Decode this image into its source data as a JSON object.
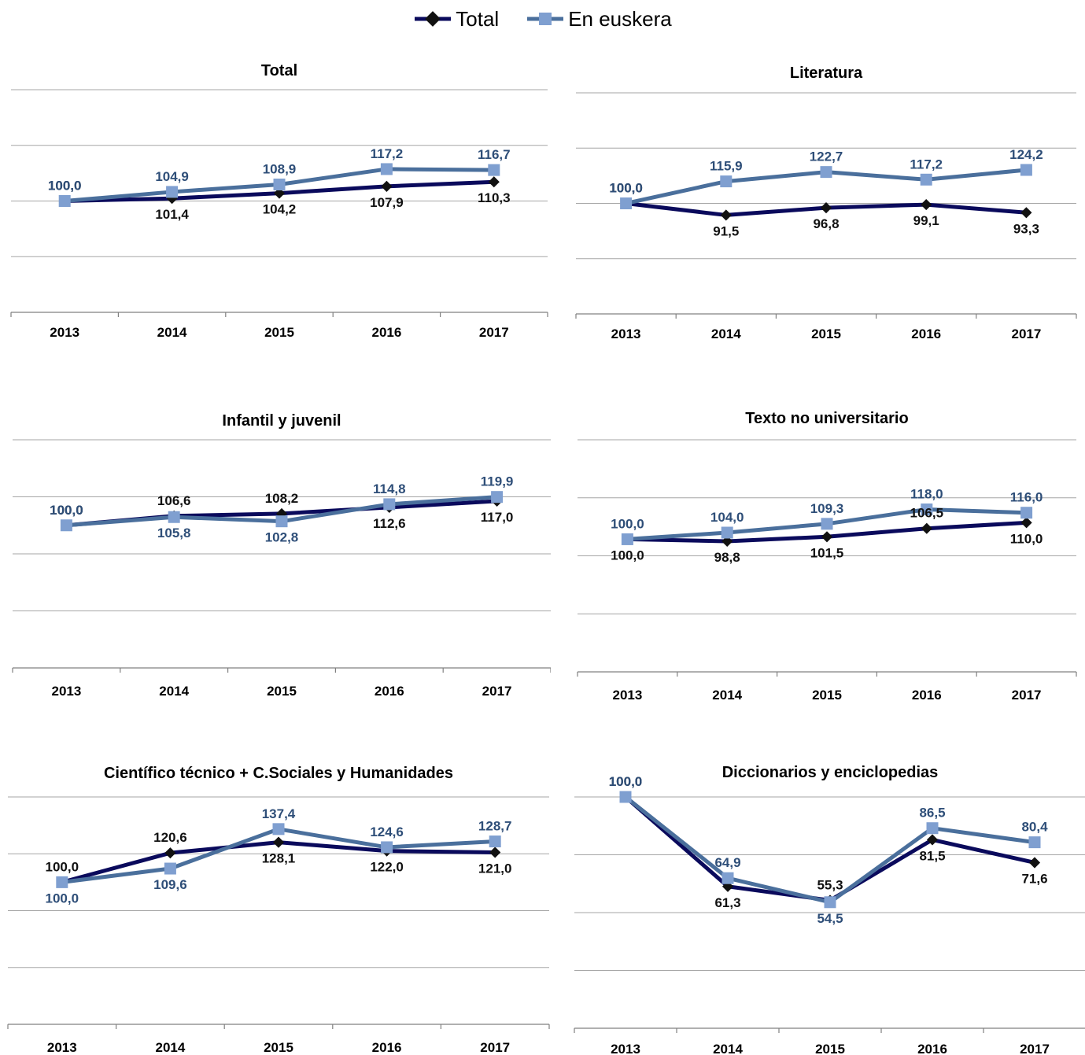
{
  "legend": {
    "total_label": "Total",
    "euskera_label": "En euskera"
  },
  "colors": {
    "total_line": "#0a0a5c",
    "total_marker": "#111111",
    "euskera_line": "#4a6f9c",
    "euskera_marker": "#7f9fd0",
    "euskera_label": "#2e4e78",
    "total_label": "#111111",
    "grid": "#a6a6a6"
  },
  "chart_data": [
    {
      "type": "line",
      "title": "Total",
      "categories": [
        "2013",
        "2014",
        "2015",
        "2016",
        "2017"
      ],
      "series": [
        {
          "name": "Total",
          "values": [
            100.0,
            101.4,
            104.2,
            107.9,
            110.3
          ],
          "labels": [
            "100,0",
            "101,4",
            "104,2",
            "107,9",
            "110,3"
          ]
        },
        {
          "name": "En euskera",
          "values": [
            100.0,
            104.9,
            108.9,
            117.2,
            116.7
          ],
          "labels": [
            "100,0",
            "104,9",
            "108,9",
            "117,2",
            "116,7"
          ]
        }
      ],
      "ylim": [
        40,
        160
      ],
      "grid": true
    },
    {
      "type": "line",
      "title": "Literatura",
      "categories": [
        "2013",
        "2014",
        "2015",
        "2016",
        "2017"
      ],
      "series": [
        {
          "name": "Total",
          "values": [
            100.0,
            91.5,
            96.8,
            99.1,
            93.3
          ],
          "labels": [
            "100,0",
            "91,5",
            "96,8",
            "99,1",
            "93,3"
          ]
        },
        {
          "name": "En euskera",
          "values": [
            100.0,
            115.9,
            122.7,
            117.2,
            124.2
          ],
          "labels": [
            "100,0",
            "115,9",
            "122,7",
            "117,2",
            "124,2"
          ]
        }
      ],
      "ylim": [
        20,
        180
      ],
      "grid": true
    },
    {
      "type": "line",
      "title": "Infantil y juvenil",
      "categories": [
        "2013",
        "2014",
        "2015",
        "2016",
        "2017"
      ],
      "series": [
        {
          "name": "Total",
          "values": [
            100.0,
            106.6,
            108.2,
            112.6,
            117.0
          ],
          "labels": [
            "100,0",
            "106,6",
            "108,2",
            "112,6",
            "117,0"
          ]
        },
        {
          "name": "En euskera",
          "values": [
            100.0,
            105.8,
            102.8,
            114.8,
            119.9
          ],
          "labels": [
            "100,0",
            "105,8",
            "102,8",
            "114,8",
            "119,9"
          ]
        }
      ],
      "ylim": [
        0,
        160
      ],
      "grid": true
    },
    {
      "type": "line",
      "title": "Texto no universitario",
      "categories": [
        "2013",
        "2014",
        "2015",
        "2016",
        "2017"
      ],
      "series": [
        {
          "name": "Total",
          "values": [
            100.0,
            98.8,
            101.5,
            106.5,
            110.0
          ],
          "labels": [
            "100,0",
            "98,8",
            "101,5",
            "106,5",
            "110,0"
          ]
        },
        {
          "name": "En euskera",
          "values": [
            100.0,
            104.0,
            109.3,
            118.0,
            116.0
          ],
          "labels": [
            "100,0",
            "104,0",
            "109,3",
            "118,0",
            "116,0"
          ]
        }
      ],
      "ylim": [
        20,
        160
      ],
      "grid": true
    },
    {
      "type": "line",
      "title": "Científico técnico + C.Sociales y Humanidades",
      "categories": [
        "2013",
        "2014",
        "2015",
        "2016",
        "2017"
      ],
      "series": [
        {
          "name": "Total",
          "values": [
            100.0,
            120.6,
            128.1,
            122.0,
            121.0
          ],
          "labels": [
            "100,0",
            "120,6",
            "128,1",
            "122,0",
            "121,0"
          ]
        },
        {
          "name": "En euskera",
          "values": [
            100.0,
            109.6,
            137.4,
            124.6,
            128.7
          ],
          "labels": [
            "100,0",
            "109,6",
            "137,4",
            "124,6",
            "128,7"
          ]
        }
      ],
      "ylim": [
        0,
        160
      ],
      "grid": true
    },
    {
      "type": "line",
      "title": "Diccionarios y enciclopedias",
      "categories": [
        "2013",
        "2014",
        "2015",
        "2016",
        "2017"
      ],
      "series": [
        {
          "name": "Total",
          "values": [
            100.0,
            61.3,
            55.3,
            81.5,
            71.6
          ],
          "labels": [
            "100,0",
            "61,3",
            "55,3",
            "81,5",
            "71,6"
          ]
        },
        {
          "name": "En euskera",
          "values": [
            100.0,
            64.9,
            54.5,
            86.5,
            80.4
          ],
          "labels": [
            "100,0",
            "64,9",
            "54,5",
            "86,5",
            "80,4"
          ]
        }
      ],
      "ylim": [
        0,
        100
      ],
      "grid": true
    }
  ]
}
